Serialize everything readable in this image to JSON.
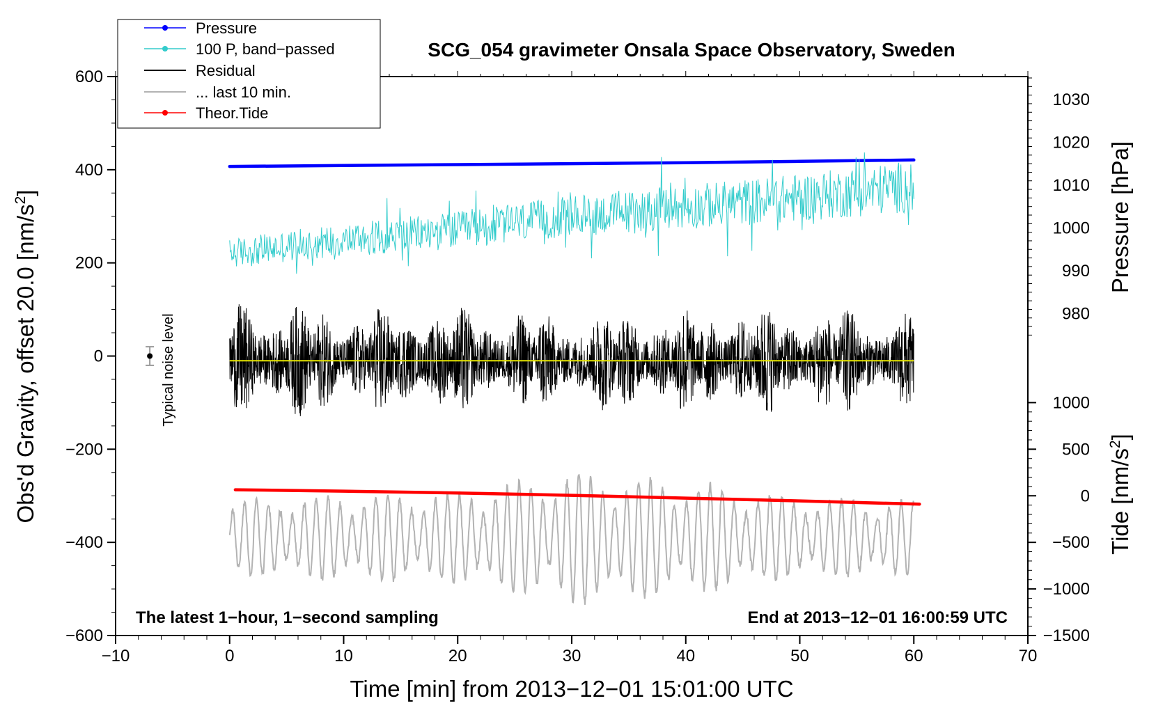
{
  "chart_data": {
    "type": "line",
    "title": "SCG_054 gravimeter Onsala Space Observatory, Sweden",
    "xlabel": "Time [min] from 2013−12−01 15:01:00 UTC",
    "ylabel_left": "Obs'd Gravity, offset 20.0 [nm/s",
    "ylabel_pressure": "Pressure [hPa]",
    "ylabel_tide": "Tide [nm/s",
    "superscript": "2",
    "xlim": [
      -10,
      70
    ],
    "ylim": [
      -600,
      600
    ],
    "x_ticks": [
      -10,
      0,
      10,
      20,
      30,
      40,
      50,
      60,
      70
    ],
    "x_tick_labels": [
      "−10",
      "0",
      "10",
      "20",
      "30",
      "40",
      "50",
      "60",
      "70"
    ],
    "y_ticks": [
      -600,
      -400,
      -200,
      0,
      200,
      400,
      600
    ],
    "y_tick_labels": [
      "−600",
      "−400",
      "−200",
      "0",
      "200",
      "400",
      "600"
    ],
    "pressure_axis": {
      "ticks": [
        980,
        990,
        1000,
        1010,
        1020,
        1030
      ],
      "tick_labels": [
        "980",
        "990",
        "1000",
        "1010",
        "1020",
        "1030"
      ],
      "gravity_at_1000": 275,
      "gravity_per_hpa": 9.2
    },
    "tide_axis": {
      "ticks": [
        -1500,
        -1000,
        -500,
        0,
        500,
        1000
      ],
      "tick_labels": [
        "−1500",
        "−1000",
        "−500",
        "0",
        "500",
        "1000"
      ],
      "gravity_at_0": -300,
      "gravity_per_unit": 0.2
    },
    "legend": [
      {
        "label": "Pressure",
        "color": "#0000ff",
        "marker": true
      },
      {
        "label": "100 P, band−passed",
        "color": "#33cccc",
        "marker": true
      },
      {
        "label": "Residual",
        "color": "#000000",
        "marker": false
      },
      {
        "label": "... last 10 min.",
        "color": "#b3b3b3",
        "marker": false
      },
      {
        "label": "Theor.Tide",
        "color": "#ff0000",
        "marker": true
      }
    ],
    "series": [
      {
        "name": "Pressure",
        "color": "#0000ff",
        "x": [
          0,
          10,
          20,
          30,
          40,
          50,
          60
        ],
        "y": [
          407,
          409,
          411,
          413,
          415,
          418,
          421
        ]
      },
      {
        "name": "100 P, band-passed",
        "color": "#33cccc",
        "x": [
          0,
          10,
          20,
          30,
          40,
          50,
          60
        ],
        "y": [
          220,
          250,
          270,
          300,
          320,
          340,
          365
        ],
        "amplitude": [
          40,
          45,
          50,
          55,
          60,
          65,
          70
        ]
      },
      {
        "name": "Residual",
        "color": "#000000",
        "x": [
          0,
          10,
          20,
          30,
          40,
          50,
          60
        ],
        "y": [
          -10,
          -10,
          -10,
          -10,
          -10,
          -10,
          -10
        ],
        "amplitude": [
          140,
          120,
          120,
          110,
          120,
          125,
          110
        ]
      },
      {
        "name": "Residual mean",
        "color": "#e6e600",
        "x": [
          0,
          60
        ],
        "y": [
          -10,
          -10
        ]
      },
      {
        "name": "... last 10 min.",
        "color": "#b3b3b3",
        "x": [
          0,
          10,
          20,
          30,
          40,
          50,
          60
        ],
        "y": [
          -390,
          -390,
          -390,
          -390,
          -390,
          -390,
          -390
        ],
        "amplitude": [
          80,
          90,
          95,
          140,
          120,
          85,
          80
        ]
      },
      {
        "name": "Theor.Tide",
        "color": "#ff0000",
        "x": [
          0.5,
          10,
          20,
          30,
          40,
          50,
          60.5
        ],
        "y": [
          -287,
          -290,
          -294,
          -299,
          -305,
          -311,
          -318
        ]
      }
    ],
    "noise_marker": {
      "x": -7,
      "y": 0,
      "err": 20,
      "label": "Typical noise level"
    },
    "annotations": {
      "bottom_left": "The latest 1−hour, 1−second sampling",
      "bottom_right": "End at 2013−12−01 16:00:59 UTC"
    }
  }
}
